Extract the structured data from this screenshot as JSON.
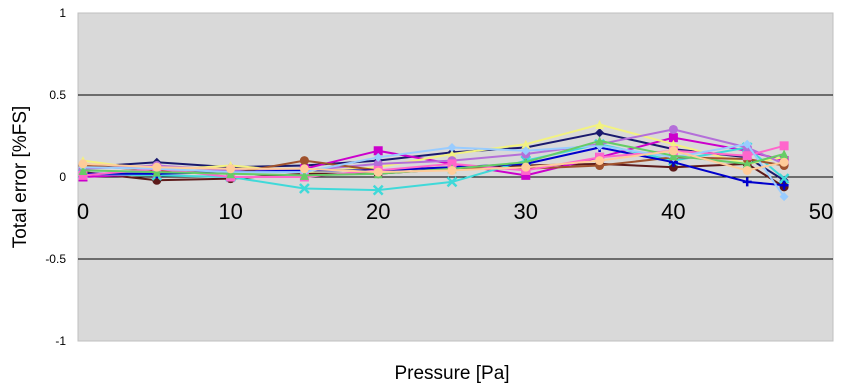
{
  "chart_data": {
    "type": "line",
    "title": "",
    "xlabel": "Pressure [Pa]",
    "ylabel": "Total error [%FS]",
    "xlim": [
      0,
      50
    ],
    "ylim": [
      -1,
      1
    ],
    "x_ticks": [
      0,
      10,
      20,
      30,
      40,
      50
    ],
    "y_ticks": [
      1,
      0.5,
      0,
      -0.5,
      -1
    ],
    "x_tick_labels": [
      "0",
      "10",
      "20",
      "30",
      "40",
      "50"
    ],
    "y_tick_labels": [
      "1",
      "0.5",
      "0",
      "-0.5",
      "-1"
    ],
    "grid": "horizontal",
    "plot_background": "#d9d9d9",
    "legend": "none",
    "series": [
      {
        "color": "#1a1a6e",
        "marker": "diamond",
        "x": [
          0,
          5,
          10,
          15,
          20,
          25,
          30,
          35,
          40,
          45,
          47.5
        ],
        "y": [
          0.06,
          0.09,
          0.06,
          0.07,
          0.1,
          0.15,
          0.18,
          0.27,
          0.17,
          0.12,
          -0.02
        ]
      },
      {
        "color": "#5c1a1a",
        "marker": "circle",
        "x": [
          0,
          5,
          10,
          15,
          20,
          25,
          30,
          35,
          40,
          45,
          47.5
        ],
        "y": [
          0.03,
          -0.02,
          -0.01,
          0.02,
          0.02,
          0.05,
          0.07,
          0.08,
          0.06,
          0.08,
          -0.06
        ]
      },
      {
        "color": "#cc00cc",
        "marker": "square",
        "x": [
          0,
          5,
          10,
          15,
          20,
          25,
          30,
          35,
          40,
          45,
          47.5
        ],
        "y": [
          0.0,
          0.02,
          0.04,
          0.05,
          0.16,
          0.08,
          0.01,
          0.12,
          0.24,
          0.16,
          0.1
        ]
      },
      {
        "color": "#f2f280",
        "marker": "triangle",
        "x": [
          0,
          5,
          10,
          15,
          20,
          25,
          30,
          35,
          40,
          45,
          47.5
        ],
        "y": [
          0.1,
          0.04,
          0.07,
          0.03,
          0.06,
          0.14,
          0.2,
          0.32,
          0.2,
          0.08,
          0.12
        ]
      },
      {
        "color": "#40d9d9",
        "marker": "x",
        "x": [
          0,
          5,
          10,
          15,
          20,
          25,
          30,
          35,
          40,
          45,
          47.5
        ],
        "y": [
          0.02,
          0.01,
          0.0,
          -0.07,
          -0.08,
          -0.03,
          0.1,
          0.2,
          0.1,
          0.18,
          -0.01
        ]
      },
      {
        "color": "#b46fd9",
        "marker": "circle",
        "x": [
          0,
          5,
          10,
          15,
          20,
          25,
          30,
          35,
          40,
          45,
          47.5
        ],
        "y": [
          0.05,
          0.07,
          0.04,
          0.04,
          0.08,
          0.1,
          0.14,
          0.2,
          0.29,
          0.18,
          0.08
        ]
      },
      {
        "color": "#a0522d",
        "marker": "circle",
        "x": [
          0,
          5,
          10,
          15,
          20,
          25,
          30,
          35,
          40,
          45,
          47.5
        ],
        "y": [
          0.07,
          0.04,
          0.02,
          0.1,
          0.04,
          0.06,
          0.05,
          0.07,
          0.12,
          0.11,
          0.07
        ]
      },
      {
        "color": "#0000cc",
        "marker": "plus",
        "x": [
          0,
          5,
          10,
          15,
          20,
          25,
          30,
          35,
          40,
          45,
          47.5
        ],
        "y": [
          0.02,
          0.02,
          0.03,
          0.04,
          0.04,
          0.06,
          0.08,
          0.18,
          0.09,
          -0.03,
          -0.05
        ]
      },
      {
        "color": "#ff66cc",
        "marker": "square",
        "x": [
          0,
          5,
          10,
          15,
          20,
          25,
          30,
          35,
          40,
          45,
          47.5
        ],
        "y": [
          0.01,
          0.05,
          0.0,
          0.0,
          0.04,
          0.08,
          0.04,
          0.12,
          0.16,
          0.13,
          0.19
        ]
      },
      {
        "color": "#99ccff",
        "marker": "diamond",
        "x": [
          0,
          5,
          10,
          15,
          20,
          25,
          30,
          35,
          40,
          45,
          47.5
        ],
        "y": [
          0.06,
          0.05,
          0.03,
          0.03,
          0.12,
          0.18,
          0.16,
          0.19,
          0.12,
          0.2,
          -0.12
        ]
      },
      {
        "color": "#66cc66",
        "marker": "triangle",
        "x": [
          0,
          5,
          10,
          15,
          20,
          25,
          30,
          35,
          40,
          45,
          47.5
        ],
        "y": [
          0.04,
          0.03,
          0.02,
          0.01,
          0.02,
          0.05,
          0.09,
          0.22,
          0.13,
          0.08,
          0.14
        ]
      },
      {
        "color": "#ffcc99",
        "marker": "circle",
        "x": [
          0,
          5,
          10,
          15,
          20,
          25,
          30,
          35,
          40,
          45,
          47.5
        ],
        "y": [
          0.08,
          0.06,
          0.05,
          0.05,
          0.03,
          0.04,
          0.06,
          0.1,
          0.16,
          0.04,
          0.09
        ]
      }
    ]
  }
}
